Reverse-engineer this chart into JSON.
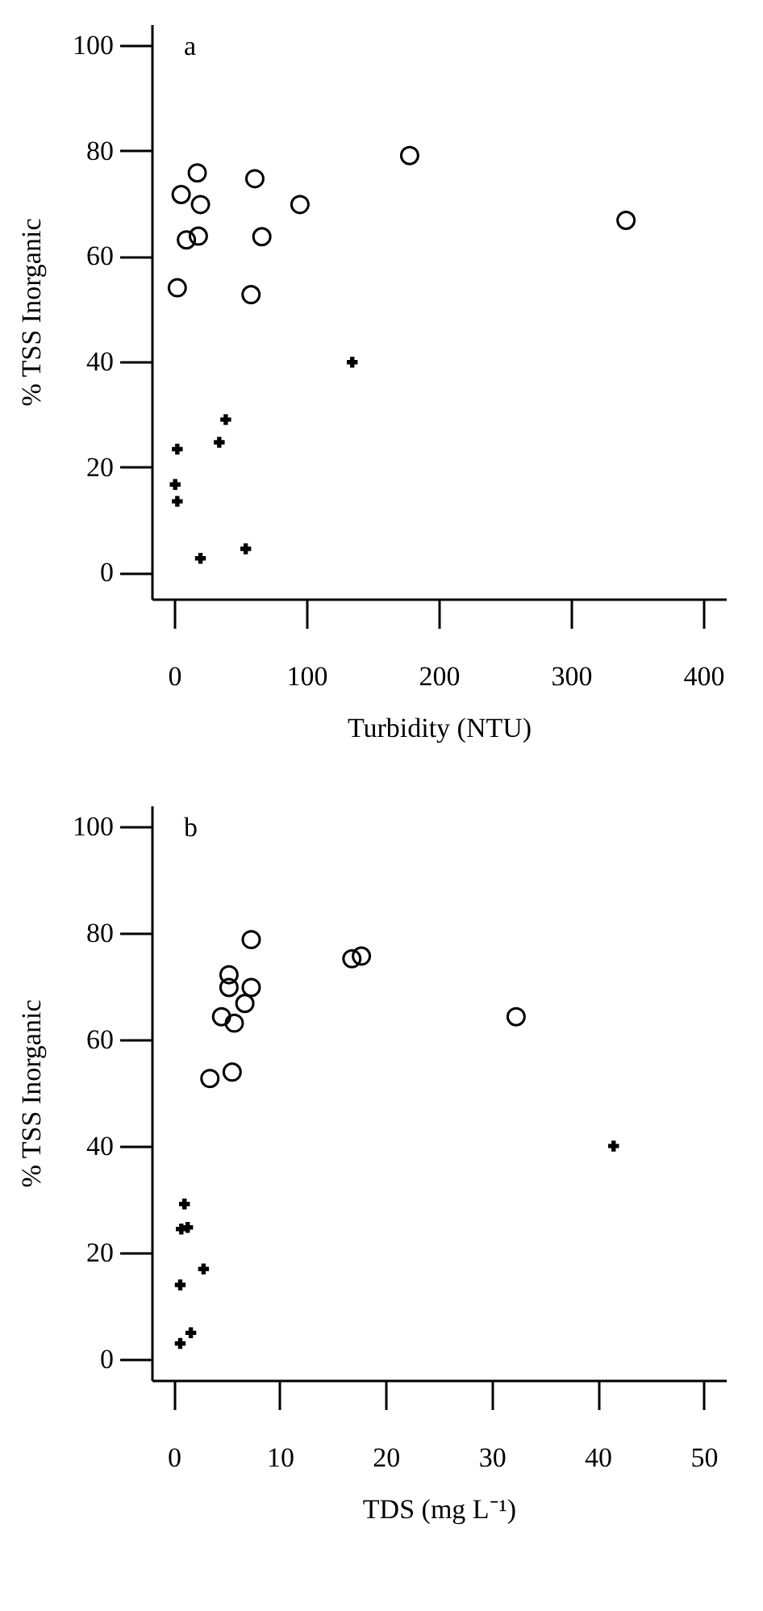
{
  "chart_data": [
    {
      "type": "scatter",
      "annotations": [
        "a"
      ],
      "xlabel": "Turbidity (NTU)",
      "ylabel": "% TSS Inorganic",
      "xlim": [
        -17,
        417
      ],
      "ylim": [
        -5,
        104
      ],
      "xticks": [
        0,
        100,
        200,
        300,
        400
      ],
      "yticks": [
        0,
        20,
        40,
        60,
        80,
        100
      ],
      "series": [
        {
          "color": "#000000",
          "marker": "circle",
          "x": [
            5.3,
            17.5,
            19.9,
            9.3,
            18.3,
            2.4,
            61,
            66.3,
            58.1,
            95.1,
            178,
            341.5
          ],
          "values": [
            71.7,
            75.8,
            69.8,
            63.1,
            63.8,
            54.0,
            74.7,
            63.7,
            52.7,
            69.8,
            79.1,
            66.8
          ]
        },
        {
          "color": "#000000",
          "marker": "cross",
          "x": [
            134.6,
            39,
            34.1,
            2.4,
            0.8,
            2.4,
            19.9,
            54.1
          ],
          "values": [
            39.9,
            29.0,
            24.7,
            23.4,
            16.7,
            13.5,
            2.7,
            4.5
          ]
        }
      ]
    },
    {
      "type": "scatter",
      "annotations": [
        "b"
      ],
      "xlabel": "TDS (mg L⁻¹)",
      "ylabel": "% TSS Inorganic",
      "xlim": [
        -2.1,
        52.1
      ],
      "ylim": [
        -4,
        104
      ],
      "xticks": [
        0,
        10,
        20,
        30,
        40,
        50
      ],
      "yticks": [
        0,
        20,
        40,
        60,
        80,
        100
      ],
      "series": [
        {
          "color": "#000000",
          "marker": "circle",
          "x": [
            7.3,
            5.2,
            5.2,
            7.3,
            6.7,
            4.5,
            5.7,
            3.4,
            5.5,
            16.8,
            17.7,
            32.3
          ],
          "values": [
            78.8,
            72.2,
            69.8,
            69.8,
            66.8,
            64.3,
            63.1,
            52.7,
            53.9,
            75.2,
            75.7,
            64.3
          ]
        },
        {
          "color": "#000000",
          "marker": "cross",
          "x": [
            41.5,
            1.0,
            0.7,
            1.3,
            2.8,
            0.6,
            0.6,
            1.6
          ],
          "values": [
            40.0,
            29.1,
            24.4,
            24.7,
            16.9,
            13.9,
            2.9,
            4.9
          ]
        }
      ]
    }
  ]
}
